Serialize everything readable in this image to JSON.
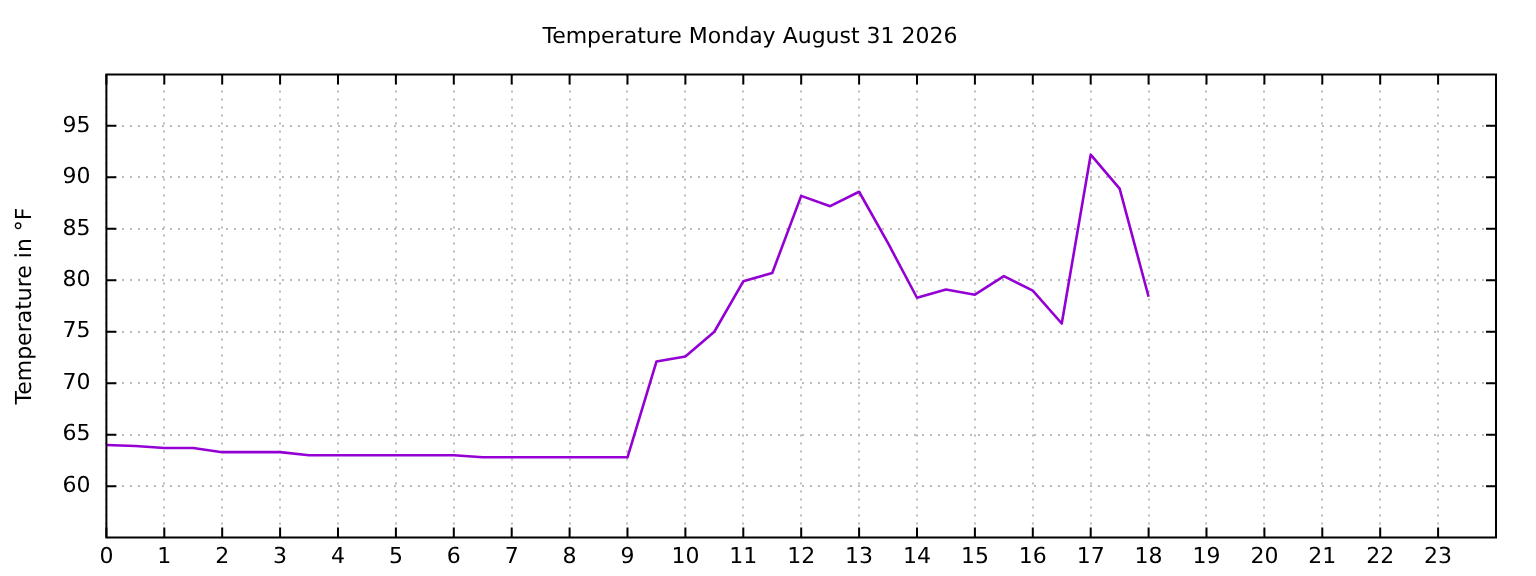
{
  "chart_data": {
    "type": "line",
    "title": "Temperature Monday August 31 2026",
    "ylabel": "Temperature in °F",
    "x": [
      0,
      0.5,
      1,
      1.5,
      2,
      2.5,
      3,
      3.5,
      4,
      4.5,
      5,
      5.5,
      6,
      6.5,
      7,
      7.5,
      8,
      8.5,
      9,
      9.5,
      10,
      10.5,
      11,
      11.5,
      12,
      12.5,
      13,
      13.5,
      14,
      14.5,
      15,
      15.5,
      16,
      16.5,
      17,
      17.5,
      18
    ],
    "series": [
      {
        "color": "#9400d3",
        "values": [
          64,
          63.9,
          63.7,
          63.7,
          63.3,
          63.3,
          63.3,
          63,
          63,
          63,
          63,
          63,
          63,
          62.8,
          62.8,
          62.8,
          62.8,
          62.8,
          62.8,
          72.1,
          72.6,
          75,
          79.9,
          80.7,
          88.2,
          87.2,
          88.6,
          83.6,
          78.3,
          79.1,
          78.6,
          80.4,
          79,
          75.8,
          92.2,
          88.9,
          78.4
        ]
      }
    ],
    "xlim": [
      0,
      24
    ],
    "xticks": [
      0,
      1,
      2,
      3,
      4,
      5,
      6,
      7,
      8,
      9,
      10,
      11,
      12,
      13,
      14,
      15,
      16,
      17,
      18,
      19,
      20,
      21,
      22,
      23
    ],
    "ylim": [
      55,
      100
    ],
    "yticks": [
      60,
      65,
      70,
      75,
      80,
      85,
      90,
      95
    ],
    "grid": true,
    "legend": false,
    "marker": "none",
    "line_style": "solid"
  }
}
